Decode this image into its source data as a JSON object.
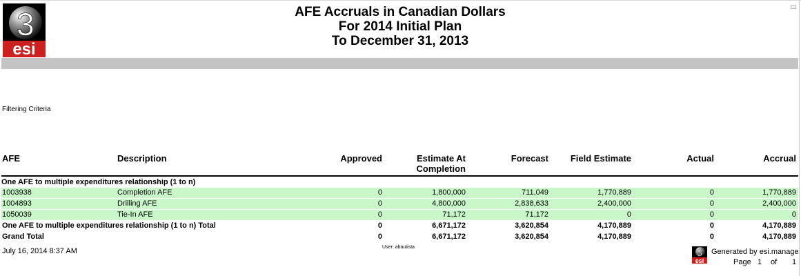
{
  "logo": {
    "top_text": "3",
    "bottom_text": "esi"
  },
  "title": {
    "line1": "AFE Accruals in Canadian Dollars",
    "line2": "For 2014 Initial Plan",
    "line3": "To December 31, 2013"
  },
  "filter_label": "Filtering Criteria",
  "columns": {
    "afe": "AFE",
    "description": "Description",
    "approved": "Approved",
    "estimate_line1": "Estimate At",
    "estimate_line2": "Completion",
    "forecast": "Forecast",
    "field_estimate": "Field Estimate",
    "actual": "Actual",
    "accrual": "Accrual"
  },
  "group_title": "One AFE to multiple expenditures relationship (1 to n)",
  "rows": [
    {
      "afe": "1003938",
      "description": "Completion AFE",
      "approved": "0",
      "estimate": "1,800,000",
      "forecast": "711,049",
      "field_estimate": "1,770,889",
      "actual": "0",
      "accrual": "1,770,889"
    },
    {
      "afe": "1004893",
      "description": "Drilling AFE",
      "approved": "0",
      "estimate": "4,800,000",
      "forecast": "2,838,633",
      "field_estimate": "2,400,000",
      "actual": "0",
      "accrual": "2,400,000"
    },
    {
      "afe": "1050039",
      "description": "Tie-In AFE",
      "approved": "0",
      "estimate": "71,172",
      "forecast": "71,172",
      "field_estimate": "0",
      "actual": "0",
      "accrual": "0"
    }
  ],
  "group_total": {
    "label": "One AFE to multiple expenditures relationship (1 to n) Total",
    "approved": "0",
    "estimate": "6,671,172",
    "forecast": "3,620,854",
    "field_estimate": "4,170,889",
    "actual": "0",
    "accrual": "4,170,889"
  },
  "grand_total": {
    "label": "Grand Total",
    "approved": "0",
    "estimate": "6,671,172",
    "forecast": "3,620,854",
    "field_estimate": "4,170,889",
    "actual": "0",
    "accrual": "4,170,889"
  },
  "footer": {
    "date": "July 16, 2014 8:37 AM",
    "user": "User: abautista",
    "generated": "Generated by esi.manage",
    "page_label": "Page",
    "page_num": "1",
    "of_label": "of",
    "page_total": "1"
  },
  "colors": {
    "row_highlight": "#c9f7c9",
    "band": "#c4c4c4",
    "logo_red": "#cc1f1f"
  }
}
